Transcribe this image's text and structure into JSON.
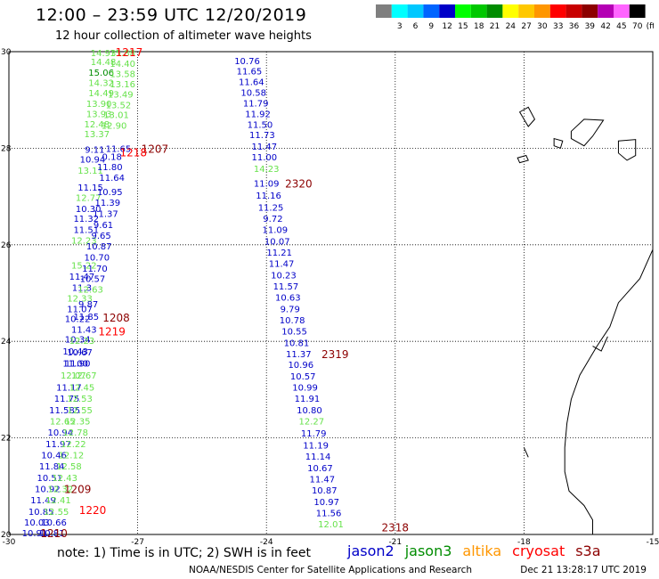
{
  "header": {
    "title": "12:00 – 23:59 UTC 12/20/2019",
    "subtitle": "12 hour collection of altimeter wave heights"
  },
  "colorbar": {
    "unit": "(ft)",
    "bins": [
      {
        "label": "",
        "color": "#7f7f7f"
      },
      {
        "label": "3",
        "color": "#00ffff"
      },
      {
        "label": "6",
        "color": "#00c8ff"
      },
      {
        "label": "9",
        "color": "#0064ff"
      },
      {
        "label": "12",
        "color": "#0000c8"
      },
      {
        "label": "15",
        "color": "#00ff00"
      },
      {
        "label": "18",
        "color": "#00c800"
      },
      {
        "label": "21",
        "color": "#008c00"
      },
      {
        "label": "24",
        "color": "#ffff00"
      },
      {
        "label": "27",
        "color": "#ffc800"
      },
      {
        "label": "30",
        "color": "#ff9600"
      },
      {
        "label": "33",
        "color": "#ff0000"
      },
      {
        "label": "36",
        "color": "#c80000"
      },
      {
        "label": "39",
        "color": "#8c0000"
      },
      {
        "label": "42",
        "color": "#b400b4"
      },
      {
        "label": "45",
        "color": "#ff64ff"
      },
      {
        "label": "70",
        "color": "#000000"
      }
    ]
  },
  "map": {
    "lon_range": [
      -30,
      -15
    ],
    "lat_range": [
      20,
      30
    ],
    "x_ticks": [
      "-30",
      "-27",
      "-24",
      "-21",
      "-18",
      "-15"
    ],
    "y_ticks": [
      "20",
      "22",
      "24",
      "26",
      "28",
      "30"
    ],
    "series_colors": {
      "jason2": "#0000c8",
      "jason3": "#008c00",
      "altika": "#ff9600",
      "cryosat": "#ff0000",
      "s3a": "#8c0000",
      "lime": "#66e24a"
    },
    "track_left": [
      {
        "lon": -27.8,
        "lat": 29.98,
        "v": "14.93",
        "c": "lime"
      },
      {
        "lon": -27.8,
        "lat": 29.8,
        "v": "14.48",
        "c": "lime"
      },
      {
        "lon": -27.85,
        "lat": 29.58,
        "v": "15.06",
        "c": "jason3"
      },
      {
        "lon": -27.85,
        "lat": 29.36,
        "v": "14.32",
        "c": "lime"
      },
      {
        "lon": -27.85,
        "lat": 29.15,
        "v": "14.49",
        "c": "lime"
      },
      {
        "lon": -27.9,
        "lat": 28.93,
        "v": "13.90",
        "c": "lime"
      },
      {
        "lon": -27.9,
        "lat": 28.72,
        "v": "13.93",
        "c": "lime"
      },
      {
        "lon": -27.95,
        "lat": 28.51,
        "v": "12.48",
        "c": "lime"
      },
      {
        "lon": -27.95,
        "lat": 28.3,
        "v": "13.37",
        "c": "lime"
      },
      {
        "lon": -28.0,
        "lat": 27.98,
        "v": "9.11",
        "c": "jason2"
      },
      {
        "lon": -28.05,
        "lat": 27.78,
        "v": "10.94",
        "c": "jason2"
      },
      {
        "lon": -28.1,
        "lat": 27.55,
        "v": "13.11",
        "c": "lime"
      },
      {
        "lon": -28.1,
        "lat": 27.2,
        "v": "11.15",
        "c": "jason2"
      },
      {
        "lon": -28.15,
        "lat": 26.98,
        "v": "12.77",
        "c": "lime"
      },
      {
        "lon": -28.15,
        "lat": 26.75,
        "v": "10.30",
        "c": "jason2"
      },
      {
        "lon": -28.2,
        "lat": 26.55,
        "v": "11.32",
        "c": "jason2"
      },
      {
        "lon": -28.2,
        "lat": 26.32,
        "v": "11.51",
        "c": "jason2"
      },
      {
        "lon": -28.25,
        "lat": 26.1,
        "v": "12.23",
        "c": "lime"
      },
      {
        "lon": -28.25,
        "lat": 25.58,
        "v": "15.22",
        "c": "lime"
      },
      {
        "lon": -28.3,
        "lat": 25.35,
        "v": "11.47",
        "c": "jason2"
      },
      {
        "lon": -28.3,
        "lat": 25.12,
        "v": "11.3",
        "c": "jason2"
      },
      {
        "lon": -28.35,
        "lat": 24.9,
        "v": "12.33",
        "c": "lime"
      },
      {
        "lon": -28.35,
        "lat": 24.68,
        "v": "11.07",
        "c": "jason2"
      },
      {
        "lon": -28.4,
        "lat": 24.47,
        "v": "10.22",
        "c": "jason2"
      },
      {
        "lon": -28.4,
        "lat": 24.05,
        "v": "10.34",
        "c": "jason2"
      },
      {
        "lon": -28.45,
        "lat": 23.8,
        "v": "10.43",
        "c": "jason2"
      },
      {
        "lon": -28.45,
        "lat": 23.55,
        "v": "11.00",
        "c": "jason2"
      },
      {
        "lon": -28.5,
        "lat": 23.3,
        "v": "12.07",
        "c": "lime"
      },
      {
        "lon": -28.6,
        "lat": 23.05,
        "v": "11.17",
        "c": "jason2"
      },
      {
        "lon": -28.65,
        "lat": 22.82,
        "v": "11.75",
        "c": "jason2"
      },
      {
        "lon": -28.7,
        "lat": 22.58,
        "v": "11.585",
        "c": "jason2"
      },
      {
        "lon": -28.75,
        "lat": 22.35,
        "v": "12.65",
        "c": "lime"
      },
      {
        "lon": -28.8,
        "lat": 22.12,
        "v": "10.94",
        "c": "jason2"
      },
      {
        "lon": -28.85,
        "lat": 21.88,
        "v": "11.97",
        "c": "jason2"
      },
      {
        "lon": -28.95,
        "lat": 21.65,
        "v": "10.46",
        "c": "jason2"
      },
      {
        "lon": -29.0,
        "lat": 21.42,
        "v": "11.84",
        "c": "jason2"
      },
      {
        "lon": -29.05,
        "lat": 21.18,
        "v": "10.51",
        "c": "jason2"
      },
      {
        "lon": -29.1,
        "lat": 20.95,
        "v": "10.92",
        "c": "jason2"
      },
      {
        "lon": -29.2,
        "lat": 20.72,
        "v": "11.49",
        "c": "jason2"
      },
      {
        "lon": -29.25,
        "lat": 20.48,
        "v": "10.85",
        "c": "jason2"
      },
      {
        "lon": -29.35,
        "lat": 20.26,
        "v": "10.03",
        "c": "jason2"
      },
      {
        "lon": -29.4,
        "lat": 20.04,
        "v": "10.91",
        "c": "jason2"
      }
    ],
    "track_left2": [
      {
        "lon": -27.35,
        "lat": 29.98,
        "v": "15.88",
        "c": "lime"
      },
      {
        "lon": -27.35,
        "lat": 29.76,
        "v": "14.40",
        "c": "lime"
      },
      {
        "lon": -27.35,
        "lat": 29.55,
        "v": "13.58",
        "c": "lime"
      },
      {
        "lon": -27.35,
        "lat": 29.34,
        "v": "13.16",
        "c": "lime"
      },
      {
        "lon": -27.4,
        "lat": 29.12,
        "v": "13.49",
        "c": "lime"
      },
      {
        "lon": -27.45,
        "lat": 28.9,
        "v": "13.52",
        "c": "lime"
      },
      {
        "lon": -27.5,
        "lat": 28.7,
        "v": "13.01",
        "c": "lime"
      },
      {
        "lon": -27.55,
        "lat": 28.48,
        "v": "12.90",
        "c": "lime"
      },
      {
        "lon": -27.45,
        "lat": 28.0,
        "v": "11.65",
        "c": "jason2"
      },
      {
        "lon": -27.6,
        "lat": 27.83,
        "v": "0.18",
        "c": "jason2"
      },
      {
        "lon": -27.65,
        "lat": 27.62,
        "v": "11.80",
        "c": "jason2"
      },
      {
        "lon": -27.6,
        "lat": 27.4,
        "v": "11.64",
        "c": "jason2"
      },
      {
        "lon": -27.65,
        "lat": 27.1,
        "v": "10.95",
        "c": "jason2"
      },
      {
        "lon": -27.7,
        "lat": 26.88,
        "v": "11.39",
        "c": "jason2"
      },
      {
        "lon": -27.75,
        "lat": 26.65,
        "v": "11.37",
        "c": "jason2"
      },
      {
        "lon": -27.8,
        "lat": 26.42,
        "v": "9.61",
        "c": "jason2"
      },
      {
        "lon": -27.85,
        "lat": 26.2,
        "v": "9.65",
        "c": "jason2"
      },
      {
        "lon": -27.9,
        "lat": 25.98,
        "v": "10.87",
        "c": "jason2"
      },
      {
        "lon": -27.95,
        "lat": 25.75,
        "v": "10.70",
        "c": "jason2"
      },
      {
        "lon": -28.0,
        "lat": 25.52,
        "v": "11.70",
        "c": "jason2"
      },
      {
        "lon": -28.05,
        "lat": 25.3,
        "v": "10.57",
        "c": "jason2"
      },
      {
        "lon": -28.1,
        "lat": 25.08,
        "v": "12.63",
        "c": "lime"
      },
      {
        "lon": -28.15,
        "lat": 24.78,
        "v": "9.87",
        "c": "jason2"
      },
      {
        "lon": -28.2,
        "lat": 24.52,
        "v": "11.85",
        "c": "jason2"
      },
      {
        "lon": -28.25,
        "lat": 24.25,
        "v": "11.43",
        "c": "jason2"
      },
      {
        "lon": -28.3,
        "lat": 24.02,
        "v": "12.23",
        "c": "lime"
      },
      {
        "lon": -28.35,
        "lat": 23.78,
        "v": "10.67",
        "c": "jason2"
      },
      {
        "lon": -28.4,
        "lat": 23.55,
        "v": "11.90",
        "c": "jason2"
      },
      {
        "lon": -28.25,
        "lat": 23.3,
        "v": "12.67",
        "c": "lime"
      },
      {
        "lon": -28.3,
        "lat": 23.05,
        "v": "12.45",
        "c": "lime"
      },
      {
        "lon": -28.35,
        "lat": 22.82,
        "v": "12.53",
        "c": "lime"
      },
      {
        "lon": -28.35,
        "lat": 22.58,
        "v": "12.55",
        "c": "lime"
      },
      {
        "lon": -28.4,
        "lat": 22.35,
        "v": "12.35",
        "c": "lime"
      },
      {
        "lon": -28.45,
        "lat": 22.12,
        "v": "12.78",
        "c": "lime"
      },
      {
        "lon": -28.5,
        "lat": 21.88,
        "v": "12.22",
        "c": "lime"
      },
      {
        "lon": -28.55,
        "lat": 21.65,
        "v": "12.12",
        "c": "lime"
      },
      {
        "lon": -28.6,
        "lat": 21.42,
        "v": "12.58",
        "c": "lime"
      },
      {
        "lon": -28.7,
        "lat": 21.18,
        "v": "12.43",
        "c": "lime"
      },
      {
        "lon": -28.8,
        "lat": 20.95,
        "v": "12.32",
        "c": "lime"
      },
      {
        "lon": -28.85,
        "lat": 20.72,
        "v": "12.41",
        "c": "lime"
      },
      {
        "lon": -28.9,
        "lat": 20.48,
        "v": "12.55",
        "c": "lime"
      },
      {
        "lon": -28.95,
        "lat": 20.26,
        "v": "10.66",
        "c": "jason2"
      },
      {
        "lon": -29.0,
        "lat": 20.04,
        "v": "10.81",
        "c": "jason2"
      }
    ],
    "track_right": [
      {
        "lon": -24.45,
        "lat": 29.82,
        "v": "10.76",
        "c": "jason2"
      },
      {
        "lon": -24.4,
        "lat": 29.6,
        "v": "11.65",
        "c": "jason2"
      },
      {
        "lon": -24.35,
        "lat": 29.38,
        "v": "11.64",
        "c": "jason2"
      },
      {
        "lon": -24.3,
        "lat": 29.16,
        "v": "10.58",
        "c": "jason2"
      },
      {
        "lon": -24.25,
        "lat": 28.94,
        "v": "11.79",
        "c": "jason2"
      },
      {
        "lon": -24.2,
        "lat": 28.72,
        "v": "11.92",
        "c": "jason2"
      },
      {
        "lon": -24.15,
        "lat": 28.5,
        "v": "11.50",
        "c": "jason2"
      },
      {
        "lon": -24.1,
        "lat": 28.28,
        "v": "11.73",
        "c": "jason2"
      },
      {
        "lon": -24.05,
        "lat": 28.04,
        "v": "11.47",
        "c": "jason2"
      },
      {
        "lon": -24.05,
        "lat": 27.82,
        "v": "11.00",
        "c": "jason2"
      },
      {
        "lon": -24.0,
        "lat": 27.58,
        "v": "14.23",
        "c": "lime"
      },
      {
        "lon": -24.0,
        "lat": 27.28,
        "v": "11.09",
        "c": "jason2"
      },
      {
        "lon": -23.95,
        "lat": 27.03,
        "v": "11.16",
        "c": "jason2"
      },
      {
        "lon": -23.9,
        "lat": 26.78,
        "v": "11.25",
        "c": "jason2"
      },
      {
        "lon": -23.85,
        "lat": 26.55,
        "v": "9.72",
        "c": "jason2"
      },
      {
        "lon": -23.8,
        "lat": 26.32,
        "v": "11.09",
        "c": "jason2"
      },
      {
        "lon": -23.75,
        "lat": 26.08,
        "v": "10.07",
        "c": "jason2"
      },
      {
        "lon": -23.7,
        "lat": 25.85,
        "v": "11.21",
        "c": "jason2"
      },
      {
        "lon": -23.65,
        "lat": 25.62,
        "v": "11.47",
        "c": "jason2"
      },
      {
        "lon": -23.6,
        "lat": 25.38,
        "v": "10.23",
        "c": "jason2"
      },
      {
        "lon": -23.55,
        "lat": 25.15,
        "v": "11.57",
        "c": "jason2"
      },
      {
        "lon": -23.5,
        "lat": 24.92,
        "v": "10.63",
        "c": "jason2"
      },
      {
        "lon": -23.45,
        "lat": 24.68,
        "v": "9.79",
        "c": "jason2"
      },
      {
        "lon": -23.4,
        "lat": 24.45,
        "v": "10.78",
        "c": "jason2"
      },
      {
        "lon": -23.35,
        "lat": 24.22,
        "v": "10.55",
        "c": "jason2"
      },
      {
        "lon": -23.3,
        "lat": 23.98,
        "v": "10.81",
        "c": "jason2"
      },
      {
        "lon": -23.25,
        "lat": 23.75,
        "v": "11.37",
        "c": "jason2"
      },
      {
        "lon": -23.2,
        "lat": 23.52,
        "v": "10.96",
        "c": "jason2"
      },
      {
        "lon": -23.15,
        "lat": 23.28,
        "v": "10.57",
        "c": "jason2"
      },
      {
        "lon": -23.1,
        "lat": 23.05,
        "v": "10.99",
        "c": "jason2"
      },
      {
        "lon": -23.05,
        "lat": 22.82,
        "v": "11.91",
        "c": "jason2"
      },
      {
        "lon": -23.0,
        "lat": 22.58,
        "v": "10.80",
        "c": "jason2"
      },
      {
        "lon": -22.95,
        "lat": 22.35,
        "v": "12.27",
        "c": "lime"
      },
      {
        "lon": -22.9,
        "lat": 22.1,
        "v": "11.79",
        "c": "jason2"
      },
      {
        "lon": -22.85,
        "lat": 21.85,
        "v": "11.19",
        "c": "jason2"
      },
      {
        "lon": -22.8,
        "lat": 21.62,
        "v": "11.14",
        "c": "jason2"
      },
      {
        "lon": -22.75,
        "lat": 21.38,
        "v": "10.67",
        "c": "jason2"
      },
      {
        "lon": -22.7,
        "lat": 21.15,
        "v": "11.47",
        "c": "jason2"
      },
      {
        "lon": -22.65,
        "lat": 20.92,
        "v": "10.87",
        "c": "jason2"
      },
      {
        "lon": -22.6,
        "lat": 20.68,
        "v": "10.97",
        "c": "jason2"
      },
      {
        "lon": -22.55,
        "lat": 20.45,
        "v": "11.56",
        "c": "jason2"
      },
      {
        "lon": -22.5,
        "lat": 20.22,
        "v": "12.01",
        "c": "lime"
      }
    ],
    "time_labels": [
      {
        "lon": -27.2,
        "lat": 30.0,
        "v": "1217",
        "c": "cryosat"
      },
      {
        "lon": -26.6,
        "lat": 28.0,
        "v": "1207",
        "c": "s3a"
      },
      {
        "lon": -27.1,
        "lat": 27.92,
        "v": "1218",
        "c": "cryosat"
      },
      {
        "lon": -23.25,
        "lat": 27.28,
        "v": "2320",
        "c": "s3a"
      },
      {
        "lon": -27.5,
        "lat": 24.5,
        "v": "1208",
        "c": "s3a"
      },
      {
        "lon": -27.6,
        "lat": 24.22,
        "v": "1219",
        "c": "cryosat"
      },
      {
        "lon": -22.4,
        "lat": 23.75,
        "v": "2319",
        "c": "s3a"
      },
      {
        "lon": -28.4,
        "lat": 20.95,
        "v": "1209",
        "c": "s3a"
      },
      {
        "lon": -28.05,
        "lat": 20.52,
        "v": "1220",
        "c": "cryosat"
      },
      {
        "lon": -28.95,
        "lat": 20.04,
        "v": "1210",
        "c": "s3a"
      },
      {
        "lon": -21.0,
        "lat": 20.16,
        "v": "2318",
        "c": "s3a"
      }
    ]
  },
  "footer": {
    "note": "note:  1) Time is in UTC;  2) SWH is in feet",
    "satellites": [
      {
        "name": "jason2",
        "color": "#0000c8"
      },
      {
        "name": "jason3",
        "color": "#008c00"
      },
      {
        "name": "altika",
        "color": "#ff9600"
      },
      {
        "name": "cryosat",
        "color": "#ff0000"
      },
      {
        "name": "s3a",
        "color": "#8c0000"
      }
    ],
    "credit": "NOAA/NESDIS Center for Satellite Applications and Research",
    "timestamp": "Dec 21 13:28:17 UTC 2019"
  }
}
